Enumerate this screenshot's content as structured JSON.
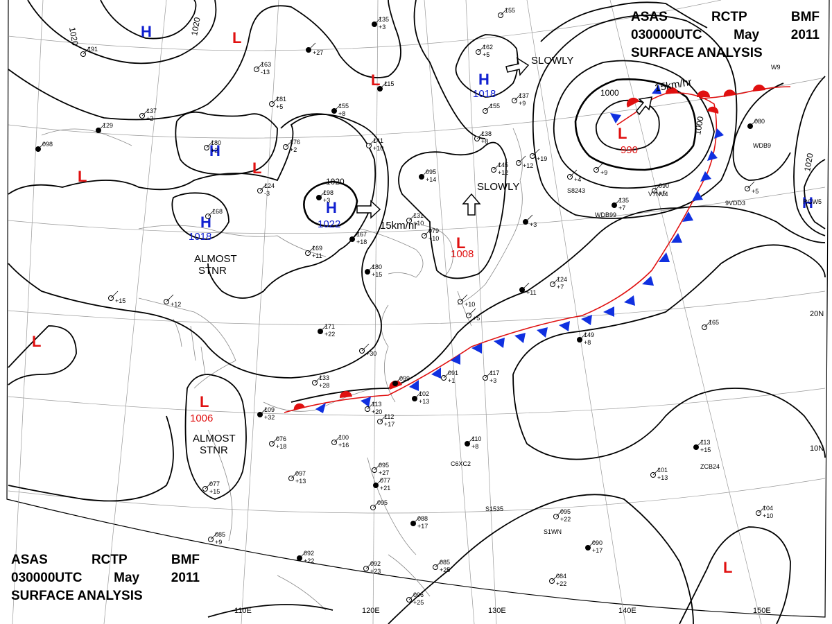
{
  "header": {
    "line1": [
      "ASAS",
      "RCTP",
      "BMF"
    ],
    "line2": [
      "030000UTC",
      "May",
      "2011"
    ],
    "line3": "SURFACE ANALYSIS"
  },
  "footer": {
    "line1": [
      "ASAS",
      "RCTP",
      "BMF"
    ],
    "line2": [
      "030000UTC",
      "May",
      "2011"
    ],
    "line3": "SURFACE ANALYSIS"
  },
  "colors": {
    "high": "#1020d0",
    "low": "#e01010",
    "front_cold": "#1030e0",
    "front_warm": "#e01010"
  },
  "lon_labels": [
    "110E",
    "120E",
    "130E",
    "140E",
    "150E"
  ],
  "lat_labels": [
    "20N",
    "10N"
  ],
  "isobar_labels": [
    "1020",
    "1020",
    "1020",
    "1020",
    "1000",
    "1000"
  ],
  "highs": [
    {
      "symbol": "H",
      "value": ""
    },
    {
      "symbol": "H",
      "value": ""
    },
    {
      "symbol": "H",
      "value": "1018"
    },
    {
      "symbol": "H",
      "value": "1022"
    },
    {
      "symbol": "H",
      "value": "1018"
    },
    {
      "symbol": "H",
      "value": ""
    }
  ],
  "lows": [
    {
      "symbol": "L",
      "value": ""
    },
    {
      "symbol": "L",
      "value": ""
    },
    {
      "symbol": "L",
      "value": ""
    },
    {
      "symbol": "L",
      "value": ""
    },
    {
      "symbol": "L",
      "value": "1008"
    },
    {
      "symbol": "L",
      "value": "990"
    },
    {
      "symbol": "L",
      "value": "1006"
    },
    {
      "symbol": "L",
      "value": ""
    }
  ],
  "annotations": {
    "high_china_motion": "15km/hr",
    "low_pacific_motion": "15km/hr",
    "slowly_1": "SLOWLY",
    "slowly_2": "SLOWLY",
    "stnr_1": [
      "ALMOST",
      "STNR"
    ],
    "stnr_2": [
      "ALMOST",
      "STNR"
    ]
  },
  "stations": [
    {
      "pressure": "135",
      "tendency": "+3"
    },
    {
      "pressure": "155",
      "tendency": ""
    },
    {
      "pressure": "191",
      "tendency": ""
    },
    {
      "pressure": "",
      "tendency": "+27"
    },
    {
      "pressure": "163",
      "tendency": "-13"
    },
    {
      "pressure": "162",
      "tendency": "+5"
    },
    {
      "pressure": "115",
      "tendency": ""
    },
    {
      "pressure": "137",
      "tendency": "+9"
    },
    {
      "pressure": "181",
      "tendency": "+5"
    },
    {
      "pressure": "155",
      "tendency": "+8"
    },
    {
      "pressure": "137",
      "tendency": "+2"
    },
    {
      "pressure": "155",
      "tendency": ""
    },
    {
      "pressure": "129",
      "tendency": ""
    },
    {
      "pressure": "141",
      "tendency": "+10"
    },
    {
      "pressure": "138",
      "tendency": "+8"
    },
    {
      "pressure": "098",
      "tendency": ""
    },
    {
      "pressure": "176",
      "tendency": "+2"
    },
    {
      "pressure": "180",
      "tendency": "+2"
    },
    {
      "pressure": "095",
      "tendency": "+14"
    },
    {
      "pressure": "145",
      "tendency": "+12"
    },
    {
      "pressure": "124",
      "tendency": "-3"
    },
    {
      "pressure": "198",
      "tendency": "+3"
    },
    {
      "pressure": "168",
      "tendency": ""
    },
    {
      "pressure": "131",
      "tendency": "+10"
    },
    {
      "pressure": "167",
      "tendency": "+18"
    },
    {
      "pressure": "079",
      "tendency": "+10"
    },
    {
      "pressure": "169",
      "tendency": "+11"
    },
    {
      "pressure": "180",
      "tendency": "+15"
    },
    {
      "pressure": "",
      "tendency": "+12"
    },
    {
      "pressure": "",
      "tendency": "+15"
    },
    {
      "pressure": "171",
      "tendency": "+22"
    },
    {
      "pressure": "",
      "tendency": "+30"
    },
    {
      "pressure": "133",
      "tendency": "+28"
    },
    {
      "pressure": "099",
      "tendency": ""
    },
    {
      "pressure": "091",
      "tendency": "+1"
    },
    {
      "pressure": "117",
      "tendency": "+3"
    },
    {
      "pressure": "102",
      "tendency": "+13"
    },
    {
      "pressure": "113",
      "tendency": "+20"
    },
    {
      "pressure": "112",
      "tendency": "+17"
    },
    {
      "pressure": "109",
      "tendency": "+32"
    },
    {
      "pressure": "076",
      "tendency": "+18"
    },
    {
      "pressure": "100",
      "tendency": "+16"
    },
    {
      "pressure": "110",
      "tendency": "+8"
    },
    {
      "pressure": "097",
      "tendency": "+13"
    },
    {
      "pressure": "095",
      "tendency": "+27"
    },
    {
      "pressure": "077",
      "tendency": "+21"
    },
    {
      "pressure": "077",
      "tendency": "+15"
    },
    {
      "pressure": "095",
      "tendency": ""
    },
    {
      "pressure": "088",
      "tendency": "+17"
    },
    {
      "pressure": "095",
      "tendency": "+22"
    },
    {
      "pressure": "085",
      "tendency": "+9"
    },
    {
      "pressure": "092",
      "tendency": "+22"
    },
    {
      "pressure": "092",
      "tendency": "+23"
    },
    {
      "pressure": "085",
      "tendency": "+25"
    },
    {
      "pressure": "090",
      "tendency": "+17"
    },
    {
      "pressure": "084",
      "tendency": "+22"
    },
    {
      "pressure": "096",
      "tendency": "+25"
    },
    {
      "pressure": "113",
      "tendency": "+15"
    },
    {
      "pressure": "101",
      "tendency": "+13"
    },
    {
      "pressure": "104",
      "tendency": "+10"
    },
    {
      "pressure": "149",
      "tendency": "+8"
    },
    {
      "pressure": "165",
      "tendency": ""
    },
    {
      "pressure": "090",
      "tendency": "+5"
    },
    {
      "pressure": "135",
      "tendency": "+7"
    },
    {
      "pressure": "",
      "tendency": "+9"
    },
    {
      "pressure": "124",
      "tendency": "+7"
    },
    {
      "pressure": "080",
      "tendency": ""
    },
    {
      "pressure": "",
      "tendency": "+19"
    },
    {
      "pressure": "",
      "tendency": "+5"
    },
    {
      "pressure": "",
      "tendency": "+11"
    },
    {
      "pressure": "",
      "tendency": "+10"
    },
    {
      "pressure": "",
      "tendency": "+5"
    },
    {
      "pressure": "",
      "tendency": "+3"
    },
    {
      "pressure": "",
      "tendency": "+12"
    },
    {
      "pressure": "",
      "tendency": "+4"
    }
  ],
  "ship_ids": [
    "WDB99",
    "V7NV4",
    "9VDD3",
    "S8243",
    "C6XC2",
    "S1535",
    "S1WN",
    "ZCB24",
    "WDB9",
    "RGW5",
    "W9"
  ]
}
